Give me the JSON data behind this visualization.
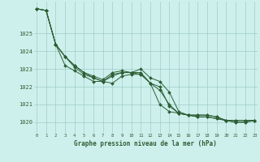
{
  "title": "Graphe pression niveau de la mer (hPa)",
  "bg_color": "#cef0ec",
  "grid_color": "#9ecdc8",
  "line_color": "#2d5e35",
  "marker_color": "#2d5e35",
  "x_labels": [
    "0",
    "1",
    "2",
    "3",
    "4",
    "5",
    "6",
    "7",
    "8",
    "9",
    "10",
    "11",
    "12",
    "13",
    "14",
    "15",
    "16",
    "17",
    "18",
    "19",
    "20",
    "21",
    "22",
    "23"
  ],
  "ylim": [
    1019.4,
    1026.8
  ],
  "yticks": [
    1020,
    1021,
    1022,
    1023,
    1024,
    1025
  ],
  "series": [
    [
      1026.4,
      1026.3,
      1024.4,
      1023.7,
      1023.1,
      1022.7,
      1022.5,
      1022.3,
      1022.2,
      1022.6,
      1022.7,
      1022.7,
      1022.2,
      1021.8,
      1021.0,
      1020.5,
      1020.4,
      1020.4,
      1020.4,
      1020.3,
      1020.1,
      1020.1,
      1020.1,
      1020.1
    ],
    [
      1026.4,
      1026.3,
      1024.4,
      1023.7,
      1023.2,
      1022.8,
      1022.6,
      1022.4,
      1022.8,
      1022.9,
      1022.8,
      1023.0,
      1022.5,
      1022.3,
      1021.7,
      1020.6,
      1020.4,
      1020.3,
      1020.3,
      1020.2,
      1020.1,
      1020.0,
      1020.0,
      1020.1
    ],
    [
      1026.4,
      1026.3,
      1024.4,
      1023.7,
      1023.2,
      1022.8,
      1022.5,
      1022.3,
      1022.7,
      1022.8,
      1022.8,
      1022.8,
      1022.2,
      1022.0,
      1020.9,
      1020.5,
      1020.4,
      1020.3,
      1020.3,
      1020.2,
      1020.1,
      1020.0,
      1020.0,
      1020.1
    ],
    [
      1026.4,
      1026.3,
      1024.4,
      1023.2,
      1022.9,
      1022.6,
      1022.3,
      1022.3,
      1022.6,
      1022.8,
      1022.8,
      1022.7,
      1022.2,
      1021.0,
      1020.6,
      1020.5,
      1020.4,
      1020.4,
      1020.4,
      1020.3,
      1020.1,
      1020.1,
      1020.1,
      1020.1
    ]
  ]
}
